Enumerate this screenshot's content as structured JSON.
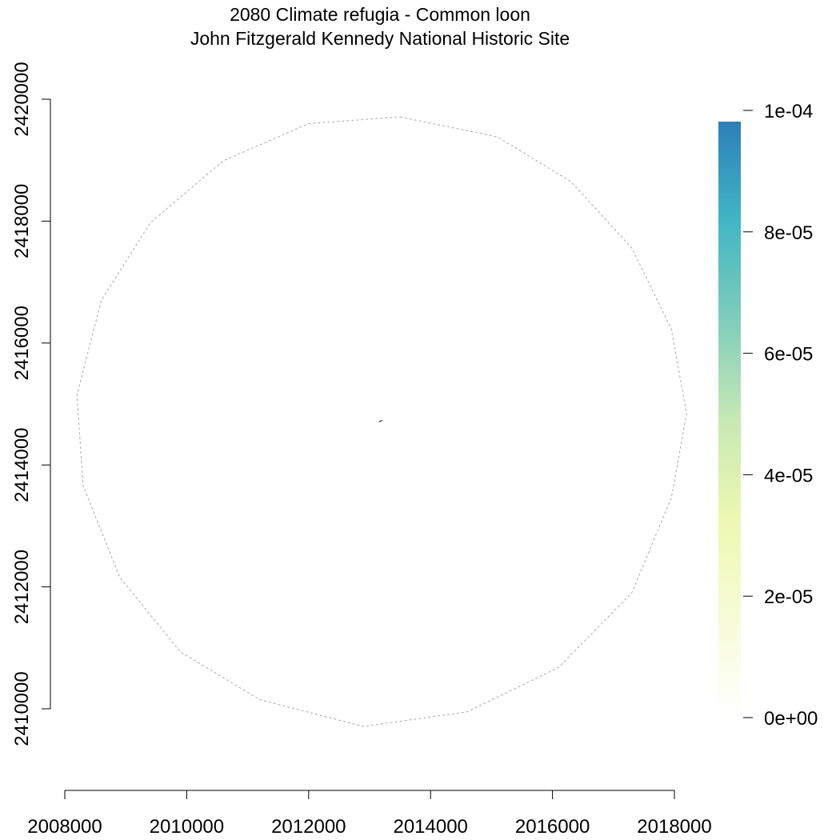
{
  "title": {
    "line1": "2080 Climate refugia - Common loon",
    "line2": "John Fitzgerald Kennedy National Historic Site"
  },
  "chart_data": {
    "type": "heatmap",
    "x_axis": {
      "range": [
        2008000,
        2018000
      ],
      "ticks": [
        2008000,
        2010000,
        2012000,
        2014000,
        2016000,
        2018000
      ],
      "tick_labels": [
        "2008000",
        "2010000",
        "2012000",
        "2014000",
        "2016000",
        "2018000"
      ]
    },
    "y_axis": {
      "range": [
        2410000,
        2420000
      ],
      "ticks": [
        2410000,
        2412000,
        2414000,
        2416000,
        2418000,
        2420000
      ],
      "tick_labels": [
        "2410000",
        "2412000",
        "2414000",
        "2416000",
        "2418000",
        "2420000"
      ]
    },
    "buffer_boundary": {
      "style": "dashed",
      "color": "#aaaaaa",
      "points": [
        [
          2013500,
          2419710
        ],
        [
          2015100,
          2419380
        ],
        [
          2016300,
          2418650
        ],
        [
          2017300,
          2417560
        ],
        [
          2017950,
          2416230
        ],
        [
          2018200,
          2414840
        ],
        [
          2017950,
          2413460
        ],
        [
          2017300,
          2411900
        ],
        [
          2016100,
          2410680
        ],
        [
          2014600,
          2409950
        ],
        [
          2012900,
          2409710
        ],
        [
          2011200,
          2410150
        ],
        [
          2009900,
          2410930
        ],
        [
          2008900,
          2412160
        ],
        [
          2008300,
          2413660
        ],
        [
          2008200,
          2415150
        ],
        [
          2008600,
          2416700
        ],
        [
          2009400,
          2417970
        ],
        [
          2010600,
          2418990
        ],
        [
          2012000,
          2419600
        ]
      ]
    },
    "site_feature": {
      "x": 2013180,
      "y": 2414720
    },
    "legend": {
      "position": "right",
      "min": 0,
      "max": 0.0001,
      "ticks": [
        0,
        2e-05,
        4e-05,
        6e-05,
        8e-05,
        0.0001
      ],
      "tick_labels": [
        "0e+00",
        "2e-05",
        "4e-05",
        "6e-05",
        "8e-05",
        "1e-04"
      ],
      "colors": [
        "#ffffff",
        "#f7fcd6",
        "#edf8b1",
        "#c7e9b4",
        "#7fcdbb",
        "#41b6c4",
        "#2c7fb8"
      ]
    }
  }
}
